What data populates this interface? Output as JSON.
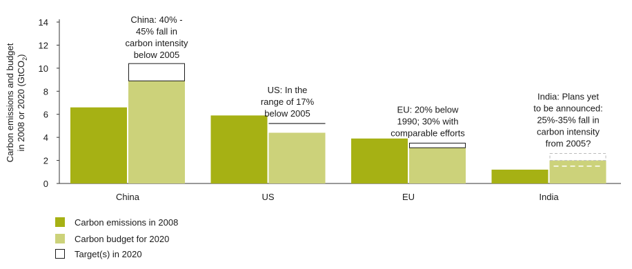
{
  "colors": {
    "emissions_2008": "#a6b114",
    "budget_2020": "#ccd27a",
    "target_outline": "#1a1a1a",
    "axis": "#333333"
  },
  "chart_data": {
    "type": "bar",
    "ylabel_line1": "Carbon emissions and budget",
    "ylabel_line2_prefix": "in 2008 or 2020 (GtCO",
    "ylabel_line2_sub": "2",
    "ylabel_line2_suffix": ")",
    "ylim": [
      0,
      14
    ],
    "yticks": [
      "0",
      "2",
      "4",
      "6",
      "8",
      "10",
      "12",
      "14"
    ],
    "categories": [
      "China",
      "US",
      "EU",
      "India"
    ],
    "series": [
      {
        "name": "Carbon emissions in 2008",
        "values": [
          6.6,
          5.9,
          3.9,
          1.2
        ]
      },
      {
        "name": "Carbon budget for 2020",
        "values": [
          8.9,
          4.4,
          3.1,
          2.0
        ]
      }
    ],
    "targets": [
      {
        "category": "China",
        "low": 8.9,
        "high": 10.4,
        "style": "box"
      },
      {
        "category": "US",
        "low": 5.2,
        "high": 5.2,
        "style": "line"
      },
      {
        "category": "EU",
        "low": 3.1,
        "high": 3.5,
        "style": "box"
      },
      {
        "category": "India",
        "low": 1.5,
        "high": 2.6,
        "style": "dashed"
      }
    ],
    "annotations": [
      {
        "category": "China",
        "lines": [
          "China: 40% -",
          "45% fall in",
          "carbon intensity",
          "below 2005"
        ]
      },
      {
        "category": "US",
        "lines": [
          "US: In the",
          "range of 17%",
          "below 2005"
        ]
      },
      {
        "category": "EU",
        "lines": [
          "EU: 20% below",
          "1990; 30% with",
          "comparable efforts"
        ]
      },
      {
        "category": "India",
        "lines": [
          "India: Plans yet",
          "to be announced:",
          "25%-35% fall in",
          "carbon intensity",
          "from 2005?"
        ]
      }
    ],
    "legend": {
      "position": "bottom-left",
      "items": [
        {
          "label": "Carbon emissions in 2008",
          "style": "emissions"
        },
        {
          "label": "Carbon budget for 2020",
          "style": "budget"
        },
        {
          "label": "Target(s) in 2020",
          "style": "outline"
        }
      ]
    }
  }
}
